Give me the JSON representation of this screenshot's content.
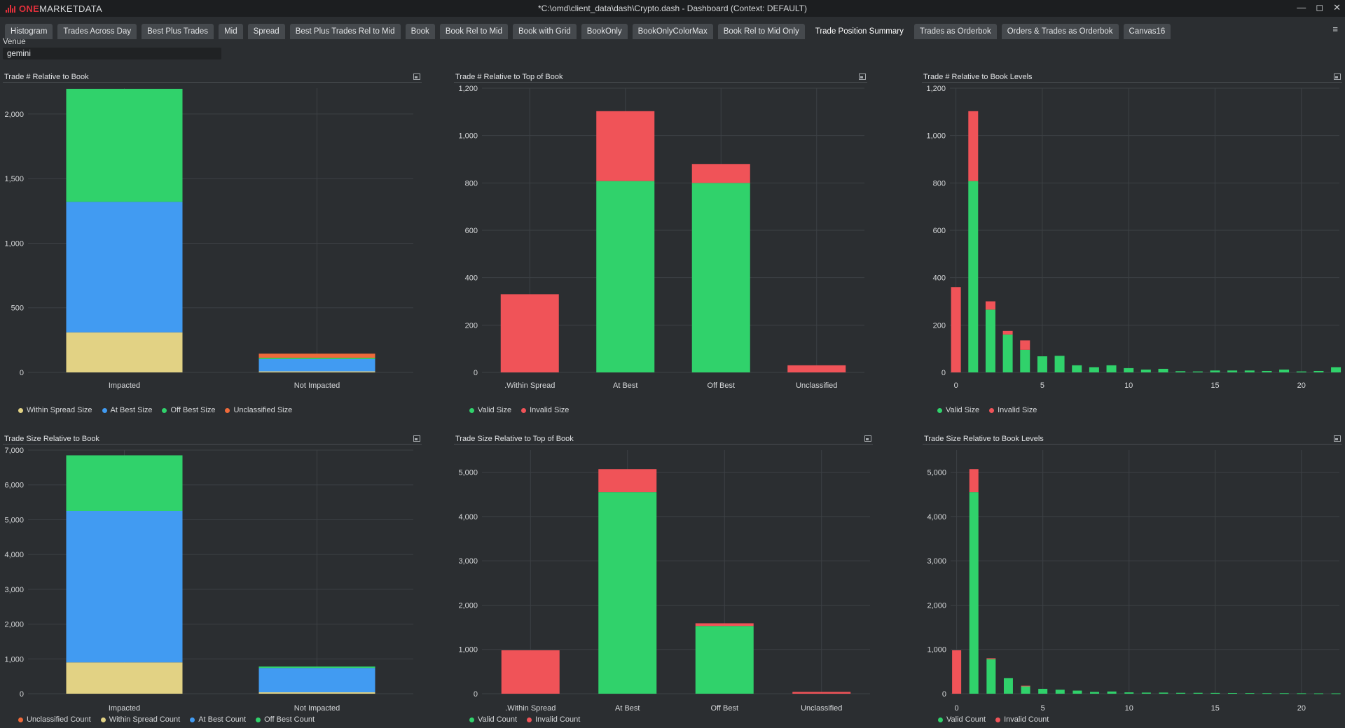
{
  "window": {
    "logo_one": "ONE",
    "logo_rest": "MARKETDATA",
    "title": "*C:\\omd\\client_data\\dash\\Crypto.dash - Dashboard (Context: DEFAULT)",
    "controls": {
      "minimize": "—",
      "maximize": "◻",
      "close": "✕"
    }
  },
  "tabs": [
    "Histogram",
    "Trades Across Day",
    "Best Plus Trades",
    "Mid",
    "Spread",
    "Best Plus Trades Rel to Mid",
    "Book",
    "Book Rel to Mid",
    "Book with Grid",
    "BookOnly",
    "BookOnlyColorMax",
    "Book Rel to Mid Only",
    "Trade Position Summary",
    "Trades as Orderbok",
    "Orders & Trades as Orderbok",
    "Canvas16"
  ],
  "active_tab": "Trade Position Summary",
  "menu_icon": "≡",
  "venue": {
    "label": "Venue",
    "value": "gemini"
  },
  "colors": {
    "within_spread": "#e2d284",
    "at_best": "#419bf2",
    "off_best": "#30d26b",
    "unclassified": "#ef6a3a",
    "valid": "#30d26b",
    "invalid": "#f05358"
  },
  "panels": [
    {
      "title": "Trade # Relative to Book"
    },
    {
      "title": "Trade # Relative to Top of Book"
    },
    {
      "title": "Trade # Relative to Book Levels"
    },
    {
      "title": "Trade Size Relative to Book"
    },
    {
      "title": "Trade Size Relative to Top of Book"
    },
    {
      "title": "Trade Size Relative to Book Levels"
    }
  ],
  "chart_data": [
    {
      "type": "bar",
      "stacked": true,
      "title": "Trade # Relative to Book",
      "categories": [
        "Impacted",
        "Not Impacted"
      ],
      "y_ticks": [
        0,
        500,
        1000,
        1500,
        2000
      ],
      "y_tick_labels": [
        "0",
        "500",
        "1,000",
        "1,500",
        "2,000"
      ],
      "ylim": [
        0,
        2200
      ],
      "series": [
        {
          "name": "Within Spread Size",
          "color": "#e2d284",
          "values": [
            310,
            8
          ]
        },
        {
          "name": "At Best Size",
          "color": "#419bf2",
          "values": [
            1010,
            95
          ]
        },
        {
          "name": "Off Best Size",
          "color": "#30d26b",
          "values": [
            875,
            10
          ]
        },
        {
          "name": "Unclassified Size",
          "color": "#ef6a3a",
          "values": [
            0,
            32
          ]
        }
      ],
      "legend": "bottom"
    },
    {
      "type": "bar",
      "stacked": true,
      "title": "Trade # Relative to Top of Book",
      "categories": [
        ".Within Spread",
        "At Best",
        "Off Best",
        "Unclassified"
      ],
      "y_ticks": [
        0,
        200,
        400,
        600,
        800,
        1000,
        1200
      ],
      "y_tick_labels": [
        "0",
        "200",
        "400",
        "600",
        "800",
        "1,000",
        "1,200"
      ],
      "ylim": [
        0,
        1200
      ],
      "series": [
        {
          "name": "Valid Size",
          "color": "#30d26b",
          "values": [
            0,
            808,
            800,
            0
          ]
        },
        {
          "name": "Invalid Size",
          "color": "#f05358",
          "values": [
            330,
            295,
            80,
            30
          ]
        }
      ],
      "legend": "bottom"
    },
    {
      "type": "bar",
      "stacked": true,
      "title": "Trade # Relative to Book Levels",
      "x": [
        0,
        1,
        2,
        3,
        4,
        5,
        6,
        7,
        8,
        9,
        10,
        11,
        12,
        13,
        14,
        15,
        16,
        17,
        18,
        19,
        20,
        21,
        22
      ],
      "x_ticks": [
        0,
        5,
        10,
        15,
        20
      ],
      "y_ticks": [
        0,
        200,
        400,
        600,
        800,
        1000,
        1200
      ],
      "y_tick_labels": [
        "0",
        "200",
        "400",
        "600",
        "800",
        "1,000",
        "1,200"
      ],
      "ylim": [
        0,
        1200
      ],
      "series": [
        {
          "name": "Valid Size",
          "color": "#30d26b",
          "values": [
            0,
            808,
            265,
            160,
            95,
            68,
            70,
            30,
            22,
            30,
            18,
            12,
            15,
            5,
            4,
            8,
            8,
            8,
            6,
            12,
            4,
            6,
            22
          ]
        },
        {
          "name": "Invalid Size",
          "color": "#f05358",
          "values": [
            360,
            295,
            35,
            15,
            40,
            0,
            0,
            0,
            0,
            0,
            0,
            0,
            0,
            0,
            0,
            0,
            0,
            0,
            0,
            0,
            0,
            0,
            0
          ]
        }
      ],
      "legend": "bottom"
    },
    {
      "type": "bar",
      "stacked": true,
      "title": "Trade Size Relative to Book",
      "categories": [
        "Impacted",
        "Not Impacted"
      ],
      "y_ticks": [
        0,
        1000,
        2000,
        3000,
        4000,
        5000,
        6000,
        7000
      ],
      "y_tick_labels": [
        "0",
        "1,000",
        "2,000",
        "3,000",
        "4,000",
        "5,000",
        "6,000",
        "7,000"
      ],
      "ylim": [
        0,
        7000
      ],
      "series": [
        {
          "name": "Unclassified Count",
          "color": "#ef6a3a",
          "values": [
            0,
            0
          ]
        },
        {
          "name": "Within Spread Count",
          "color": "#e2d284",
          "values": [
            900,
            40
          ]
        },
        {
          "name": "At Best Count",
          "color": "#419bf2",
          "values": [
            4350,
            700
          ]
        },
        {
          "name": "Off Best Count",
          "color": "#30d26b",
          "values": [
            1600,
            40
          ]
        }
      ],
      "legend": "bottom"
    },
    {
      "type": "bar",
      "stacked": true,
      "title": "Trade Size Relative to Top of Book",
      "categories": [
        ".Within Spread",
        "At Best",
        "Off Best",
        "Unclassified"
      ],
      "y_ticks": [
        0,
        1000,
        2000,
        3000,
        4000,
        5000
      ],
      "y_tick_labels": [
        "0",
        "1,000",
        "2,000",
        "3,000",
        "4,000",
        "5,000"
      ],
      "ylim": [
        0,
        5500
      ],
      "series": [
        {
          "name": "Valid Count",
          "color": "#30d26b",
          "values": [
            0,
            4550,
            1530,
            0
          ]
        },
        {
          "name": "Invalid Count",
          "color": "#f05358",
          "values": [
            980,
            520,
            60,
            40
          ]
        }
      ],
      "legend": "bottom"
    },
    {
      "type": "bar",
      "stacked": true,
      "title": "Trade Size Relative to Book Levels",
      "x": [
        0,
        1,
        2,
        3,
        4,
        5,
        6,
        7,
        8,
        9,
        10,
        11,
        12,
        13,
        14,
        15,
        16,
        17,
        18,
        19,
        20,
        21,
        22
      ],
      "x_ticks": [
        0,
        5,
        10,
        15,
        20
      ],
      "y_ticks": [
        0,
        1000,
        2000,
        3000,
        4000,
        5000
      ],
      "y_tick_labels": [
        "0",
        "1,000",
        "2,000",
        "3,000",
        "4,000",
        "5,000"
      ],
      "ylim": [
        0,
        5500
      ],
      "series": [
        {
          "name": "Valid Count",
          "color": "#30d26b",
          "values": [
            0,
            4550,
            780,
            350,
            170,
            110,
            90,
            70,
            40,
            50,
            30,
            25,
            25,
            20,
            20,
            18,
            16,
            14,
            12,
            12,
            10,
            8,
            8
          ]
        },
        {
          "name": "Invalid Count",
          "color": "#f05358",
          "values": [
            980,
            520,
            20,
            0,
            10,
            0,
            0,
            0,
            0,
            0,
            0,
            0,
            0,
            0,
            0,
            0,
            0,
            0,
            0,
            0,
            0,
            0,
            0
          ]
        }
      ],
      "legend": "bottom"
    }
  ]
}
